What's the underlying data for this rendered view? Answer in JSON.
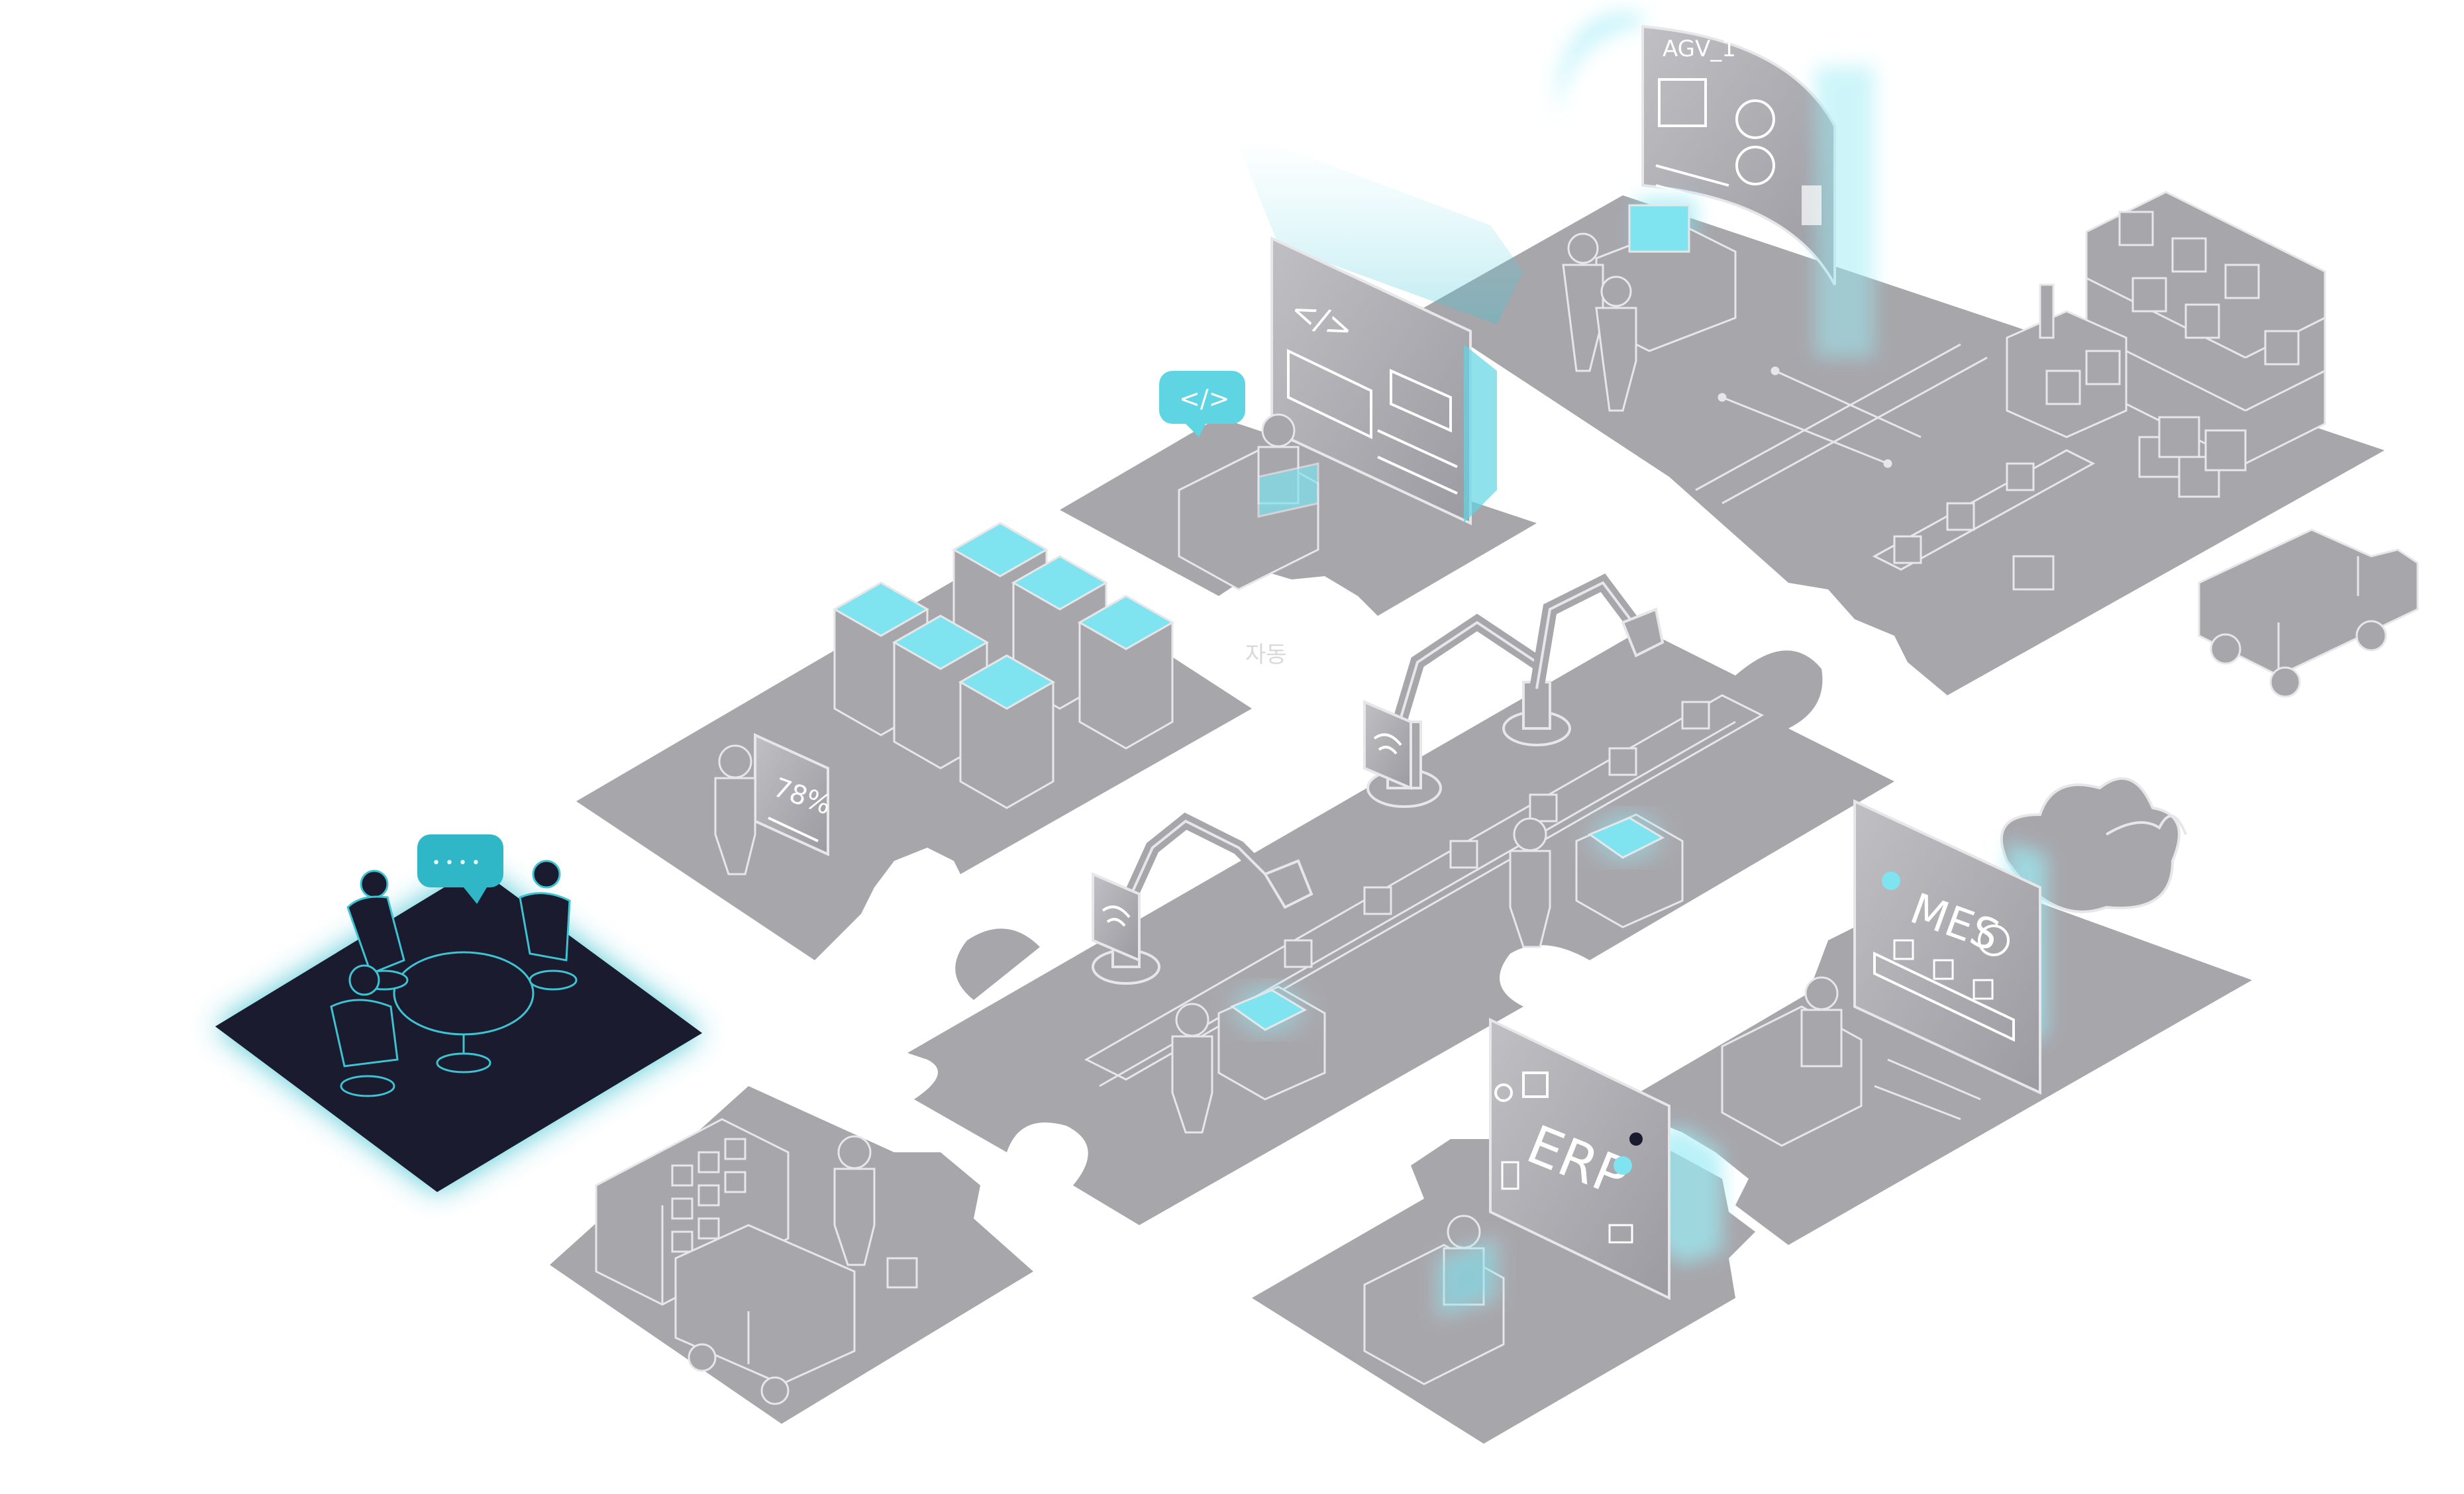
{
  "colors": {
    "background": "#ffffff",
    "tile_gray": "#a7a6ab",
    "tile_gray_dark": "#8c8b91",
    "line_light": "#e7e7ea",
    "accent_cyan": "#3ec3d3",
    "glow_cyan": "#7fe3f0",
    "highlight_tile": "#1a1b2e"
  },
  "scene": {
    "highlighted_tile": "meeting",
    "tiles": [
      {
        "id": "meeting",
        "icons": [
          "people-icon",
          "round-table-icon",
          "chat-bubble-icon"
        ]
      },
      {
        "id": "warehouse-storage",
        "icons": [
          "shelving-icon",
          "forklift-icon",
          "person-icon",
          "box-icon"
        ]
      },
      {
        "id": "data-center",
        "icons": [
          "server-rack-icon",
          "person-icon",
          "dashboard-icon"
        ]
      },
      {
        "id": "developer",
        "icons": [
          "code-screen-icon",
          "person-icon",
          "code-bubble-icon"
        ]
      },
      {
        "id": "robot-line",
        "icons": [
          "robot-arm-icon",
          "conveyor-icon",
          "wifi-tablet-icon",
          "person-icon"
        ]
      },
      {
        "id": "logistics",
        "icons": [
          "agv-screen-icon",
          "shelving-icon",
          "conveyor-icon",
          "truck-icon",
          "people-icon"
        ]
      },
      {
        "id": "mes",
        "icons": [
          "mes-screen-icon",
          "cloud-icon",
          "person-icon"
        ]
      },
      {
        "id": "erp",
        "icons": [
          "erp-screen-icon",
          "person-icon"
        ]
      }
    ]
  },
  "labels": {
    "agv": "AGV_1",
    "dashboard_percent": "78%",
    "code_tag": "</>",
    "code_bubble": "</>",
    "mes": "MES",
    "erp": "ERP",
    "faded_korean": "자동",
    "chat_dots": "• • • •"
  }
}
